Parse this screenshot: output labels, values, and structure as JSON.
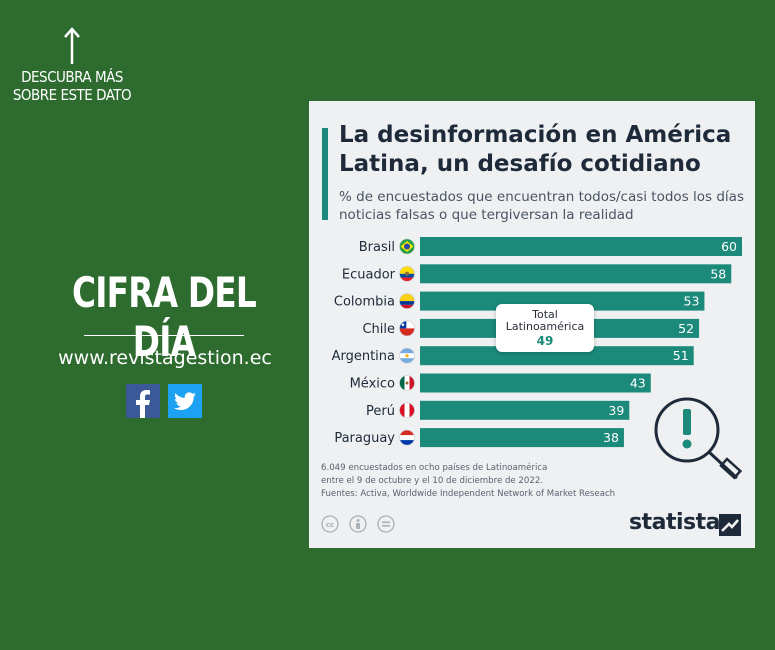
{
  "left_panel": {
    "cta": "DESCUBRA MÁS SOBRE ESTE DATO",
    "heading": "CIFRA DEL DÍA",
    "website": "www.revistagestion.ec",
    "social": [
      {
        "name": "facebook-icon",
        "color": "#3b5998",
        "glyph": "f"
      },
      {
        "name": "twitter-icon",
        "color": "#1da1f2"
      }
    ]
  },
  "card": {
    "title": "La desinformación en América Latina, un desafío cotidiano",
    "subtitle": "% de encuestados que encuentran todos/casi todos los días noticias falsas o que tergiversan la realidad",
    "callout": {
      "label": "Total Latinoamérica",
      "value": "49"
    },
    "footnote": [
      "6.049 encuestados en ocho países de Latinoamérica",
      "entre el 9 de octubre y el 10 de diciembre de 2022.",
      "Fuentes: Activa, Worldwide Independent Network of Market Reseach"
    ],
    "brand": "statista",
    "license_icons": [
      "cc-icon",
      "by-icon",
      "nd-icon"
    ]
  },
  "colors": {
    "background": "#2e6b2f",
    "bar": "#1b8a7a",
    "card": "#eef0f2",
    "accent_text": "#1e2a3a"
  },
  "chart_data": {
    "type": "bar",
    "orientation": "horizontal",
    "categories": [
      "Brasil",
      "Ecuador",
      "Colombia",
      "Chile",
      "Argentina",
      "México",
      "Perú",
      "Paraguay"
    ],
    "values": [
      60,
      58,
      53,
      52,
      51,
      43,
      39,
      38
    ],
    "flags": [
      "brazil",
      "ecuador",
      "colombia",
      "chile",
      "argentina",
      "mexico",
      "peru",
      "paraguay"
    ],
    "xlim": [
      0,
      60
    ],
    "grid": false
  }
}
